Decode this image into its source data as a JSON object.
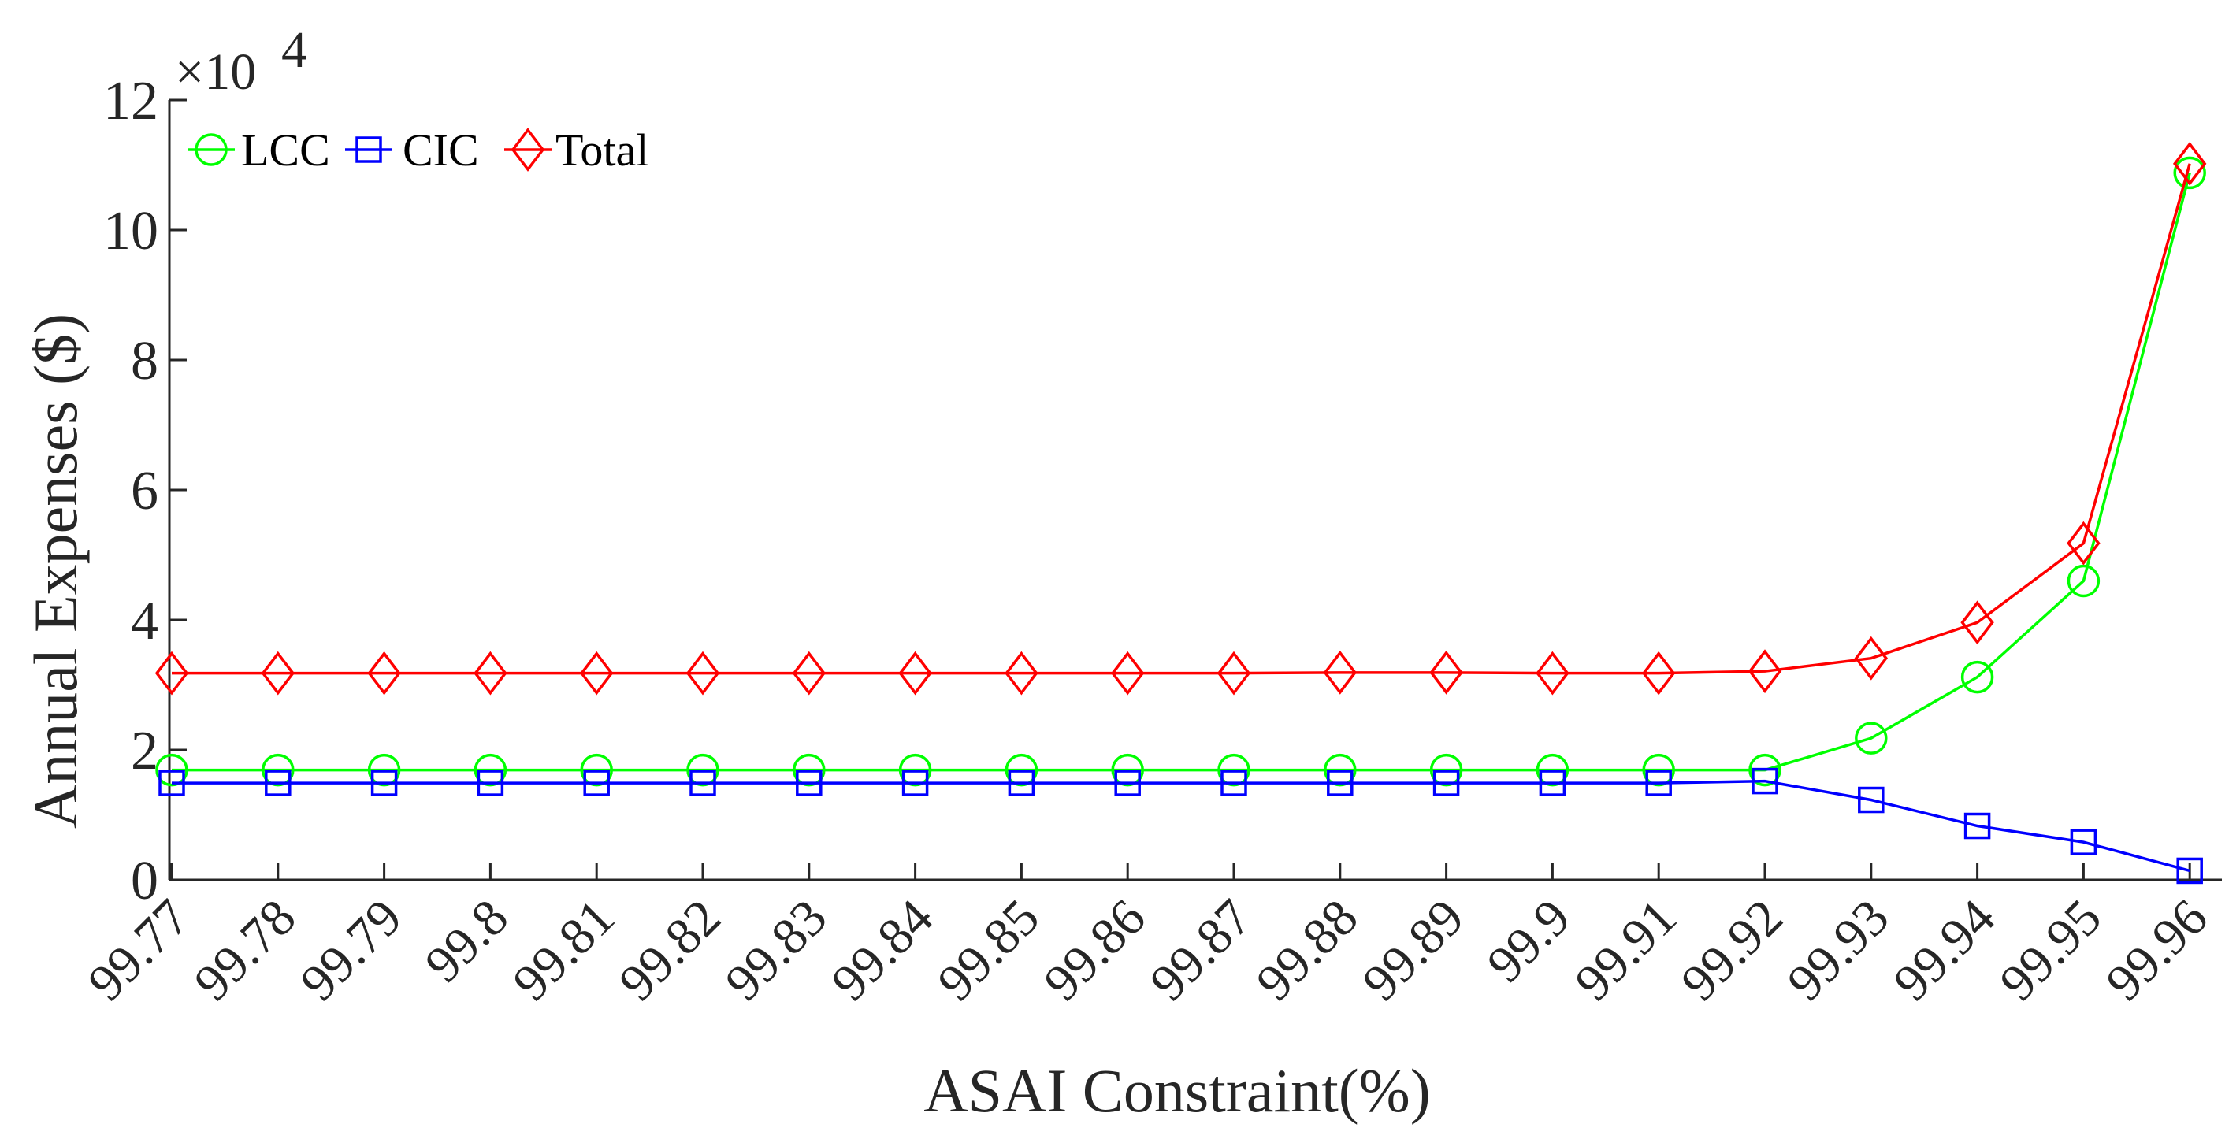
{
  "chart_data": {
    "type": "line",
    "title": "",
    "xlabel": "ASAI Constraint(%)",
    "ylabel": "Annual Expenses ($)",
    "y_exponent_label": "×10",
    "y_exponent_power": "4",
    "y_exponent_value": 10000,
    "categories": [
      "99.77",
      "99.78",
      "99.79",
      "99.8",
      "99.81",
      "99.82",
      "99.83",
      "99.84",
      "99.85",
      "99.86",
      "99.87",
      "99.88",
      "99.89",
      "99.9",
      "99.91",
      "99.92",
      "99.93",
      "99.94",
      "99.95",
      "99.96"
    ],
    "ylim": [
      0,
      120000
    ],
    "yticks": [
      0,
      20000,
      40000,
      60000,
      80000,
      100000,
      120000
    ],
    "ytick_labels": [
      "0",
      "2",
      "4",
      "6",
      "8",
      "10",
      "12"
    ],
    "legend_position": "top-left",
    "grid": false,
    "series": [
      {
        "name": "LCC",
        "color": "#00ff00",
        "marker": "circle",
        "values": [
          16900,
          16900,
          16900,
          16900,
          16900,
          16900,
          16900,
          16900,
          16900,
          16900,
          16900,
          16900,
          16900,
          16900,
          16900,
          16900,
          21800,
          31200,
          46000,
          108800
        ]
      },
      {
        "name": "CIC",
        "color": "#0000ff",
        "marker": "square",
        "values": [
          14900,
          14900,
          14900,
          14900,
          14900,
          14900,
          14900,
          14900,
          14900,
          14900,
          14900,
          14900,
          14900,
          14900,
          14900,
          15200,
          12300,
          8300,
          5800,
          1400
        ]
      },
      {
        "name": "Total",
        "color": "#ff0000",
        "marker": "diamond",
        "values": [
          31800,
          31800,
          31800,
          31800,
          31800,
          31800,
          31800,
          31800,
          31800,
          31800,
          31800,
          31900,
          31900,
          31800,
          31800,
          32100,
          34100,
          39600,
          51800,
          110200
        ]
      }
    ]
  }
}
